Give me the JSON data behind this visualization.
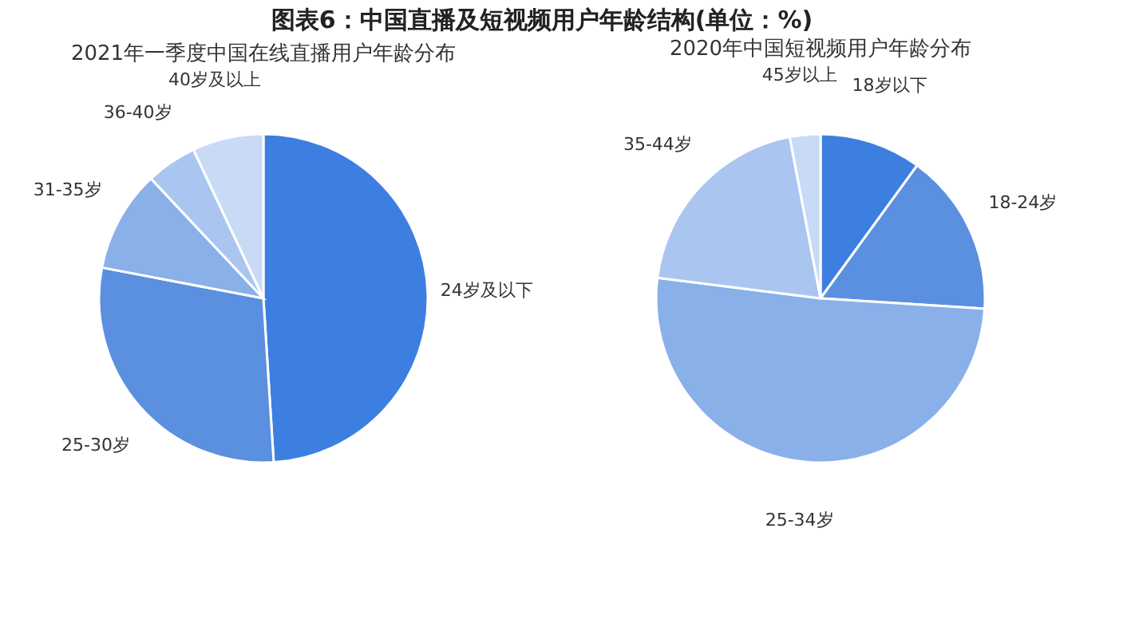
{
  "chart_data": [
    {
      "type": "pie",
      "title": "图表6：中国直播及短视频用户年龄结构(单位：%)",
      "subtitle": "2021年一季度中国在线直播用户年龄分布",
      "categories": [
        "24岁及以下",
        "25-30岁",
        "31-35岁",
        "36-40岁",
        "40岁及以上"
      ],
      "values": [
        49,
        29,
        10,
        5,
        7
      ],
      "colors": [
        "#3d7fe0",
        "#5b8fe0",
        "#8ab0ea",
        "#aac6f0",
        "#c8daf5"
      ]
    },
    {
      "type": "pie",
      "subtitle": "2020年中国短视频用户年龄分布",
      "categories": [
        "18岁以下",
        "18-24岁",
        "25-34岁",
        "35-44岁",
        "45岁以上"
      ],
      "values": [
        10,
        16,
        51,
        20,
        3
      ],
      "colors": [
        "#3d7fe0",
        "#5b93e6",
        "#8bb1ec",
        "#b0cbf2",
        "#d0e0f7"
      ]
    }
  ]
}
